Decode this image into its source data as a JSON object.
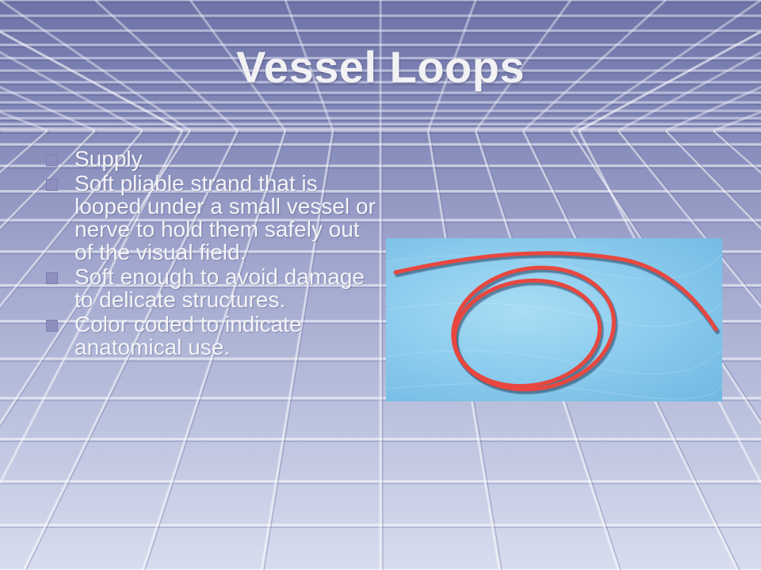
{
  "slide": {
    "title": "Vessel Loops",
    "bullets": [
      "Supply",
      "Soft pliable strand that is looped under a small vessel or nerve to hold them safely out of the visual field.",
      "Soft enough to avoid damage to delicate structures.",
      "Color coded to indicate anatomical use."
    ],
    "image": {
      "subject": "vessel-loop-photo",
      "loop_color": "#e8473f",
      "background_color": "#8ecdee"
    }
  },
  "colors": {
    "bullet_marker": "#8d90bf",
    "text": "#f4f4f8"
  }
}
